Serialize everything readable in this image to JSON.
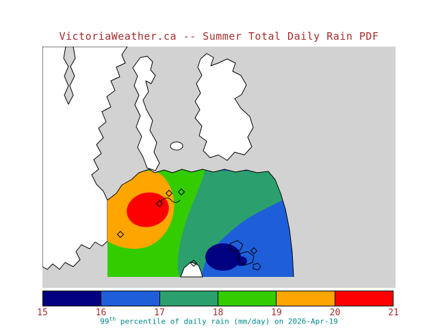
{
  "title": "VictoriaWeather.ca -- Summer Total Daily Rain PDF",
  "palette": {
    "ocean": "#D2D2D2",
    "land": "#FFFFFF",
    "coast": "#000000",
    "navy": "#000080",
    "blue": "#1E5FD9",
    "teal": "#2BA06E",
    "green": "#33CC00",
    "orange": "#FFA500",
    "red": "#FF0000",
    "title_text": "#A52A2A",
    "tick_text": "#A52A2A",
    "caption_text": "#008B8B"
  },
  "colorbar": {
    "ticks": [
      "15",
      "16",
      "17",
      "18",
      "19",
      "20",
      "21"
    ],
    "segments": [
      {
        "range": "15-16",
        "color": "#000080"
      },
      {
        "range": "16-17",
        "color": "#1E5FD9"
      },
      {
        "range": "17-18",
        "color": "#2BA06E"
      },
      {
        "range": "18-19",
        "color": "#33CC00"
      },
      {
        "range": "19-20",
        "color": "#FFA500"
      },
      {
        "range": "20-21",
        "color": "#FF0000"
      }
    ],
    "caption": {
      "prefix": "99",
      "sup": "th",
      "rest": " percentile of daily rain (mm/day) on 2026-Apr-19"
    }
  },
  "chart_data": {
    "type": "heatmap",
    "title": "VictoriaWeather.ca -- Summer Total Daily Rain PDF",
    "quantity": "99th percentile of daily rain",
    "units": "mm/day",
    "date": "2026-Apr-19",
    "contour_levels": [
      15,
      16,
      17,
      18,
      19,
      20,
      21
    ],
    "level_colors": [
      "#000080",
      "#1E5FD9",
      "#2BA06E",
      "#33CC00",
      "#FFA500",
      "#FF0000"
    ],
    "colorbar_range": [
      15,
      21
    ],
    "legend_position": "bottom",
    "max_area_value": "20-21 mm/day (red core, west-central)",
    "min_area_value": "15-16 mm/day (navy core, southeast)"
  }
}
